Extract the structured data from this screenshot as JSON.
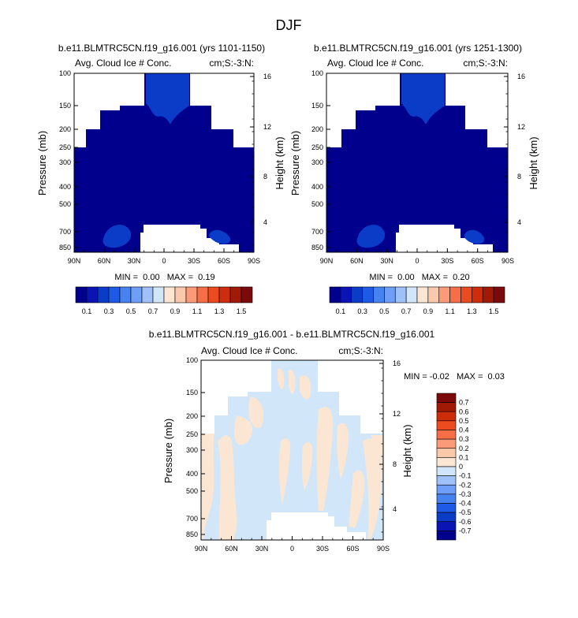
{
  "page_title": "DJF",
  "colors": {
    "dark_navy": "#00008c",
    "mid_blue": "#0a3cc8",
    "diff_blue": "#d2e6fa",
    "diff_peach": "#fae6d2"
  },
  "panels": [
    {
      "title": "b.e11.BLMTRC5CN.f19_g16.001 (yrs 1101-1150)",
      "left_label": "Avg. Cloud Ice # Conc.",
      "right_label": "cm;S:-3:N:",
      "stats": "MIN =  0.00   MAX =  0.19",
      "ylabel": "Pressure (mb)",
      "ylabel2": "Height (km)"
    },
    {
      "title": "b.e11.BLMTRC5CN.f19_g16.001 (yrs 1251-1300)",
      "left_label": "Avg. Cloud Ice # Conc.",
      "right_label": "cm;S:-3:N:",
      "stats": "MIN =  0.00   MAX =  0.20",
      "ylabel": "Pressure (mb)",
      "ylabel2": "Height (km)"
    },
    {
      "title": "b.e11.BLMTRC5CN.f19_g16.001 - b.e11.BLMTRC5CN.f19_g16.001",
      "left_label": "Avg. Cloud Ice # Conc.",
      "right_label": "cm;S:-3:N:",
      "stats": "MIN = -0.02   MAX =  0.03",
      "ylabel": "Pressure (mb)",
      "ylabel2": "Height (km)"
    }
  ],
  "chart_data": [
    {
      "type": "heatmap",
      "x_ticks": [
        "90N",
        "60N",
        "30N",
        "0",
        "30S",
        "60S",
        "90S"
      ],
      "y_ticks": [
        "100",
        "150",
        "200",
        "250",
        "300",
        "400",
        "500",
        "700",
        "850"
      ],
      "y2_ticks": [
        "16",
        "12",
        "8",
        "4"
      ],
      "min": 0.0,
      "max": 0.19
    },
    {
      "type": "heatmap",
      "x_ticks": [
        "90N",
        "60N",
        "30N",
        "0",
        "30S",
        "60S",
        "90S"
      ],
      "y_ticks": [
        "100",
        "150",
        "200",
        "250",
        "300",
        "400",
        "500",
        "700",
        "850"
      ],
      "y2_ticks": [
        "16",
        "12",
        "8",
        "4"
      ],
      "min": 0.0,
      "max": 0.2
    },
    {
      "type": "heatmap",
      "x_ticks": [
        "90N",
        "60N",
        "30N",
        "0",
        "30S",
        "60S",
        "90S"
      ],
      "y_ticks": [
        "100",
        "150",
        "200",
        "250",
        "300",
        "400",
        "500",
        "700",
        "850"
      ],
      "y2_ticks": [
        "16",
        "12",
        "8",
        "4"
      ],
      "min": -0.02,
      "max": 0.03
    }
  ],
  "colorbar_main": {
    "labels": [
      "0.1",
      "0.3",
      "0.5",
      "0.7",
      "0.9",
      "1.1",
      "1.3",
      "1.5"
    ],
    "colors": [
      "#00008c",
      "#0a14b4",
      "#0a3cc8",
      "#1e5ae6",
      "#4682f0",
      "#6e9ef5",
      "#a0c0f8",
      "#d2e6fa",
      "#fae6d2",
      "#fac8aa",
      "#fa9a78",
      "#f56e46",
      "#eb4b1e",
      "#cd2d0a",
      "#a01a05",
      "#7d0a0a"
    ]
  },
  "colorbar_diff": {
    "labels": [
      "0.7",
      "0.6",
      "0.5",
      "0.4",
      "0.3",
      "0.2",
      "0.1",
      "0",
      "-0.1",
      "-0.2",
      "-0.3",
      "-0.4",
      "-0.5",
      "-0.6",
      "-0.7"
    ],
    "colors": [
      "#7d0a0a",
      "#a01a05",
      "#cd2d0a",
      "#eb4b1e",
      "#f56e46",
      "#fa9a78",
      "#fac8aa",
      "#fae6d2",
      "#d2e6fa",
      "#a0c0f8",
      "#6e9ef5",
      "#4682f0",
      "#1e5ae6",
      "#0a3cc8",
      "#0a14b4",
      "#00008c"
    ]
  }
}
